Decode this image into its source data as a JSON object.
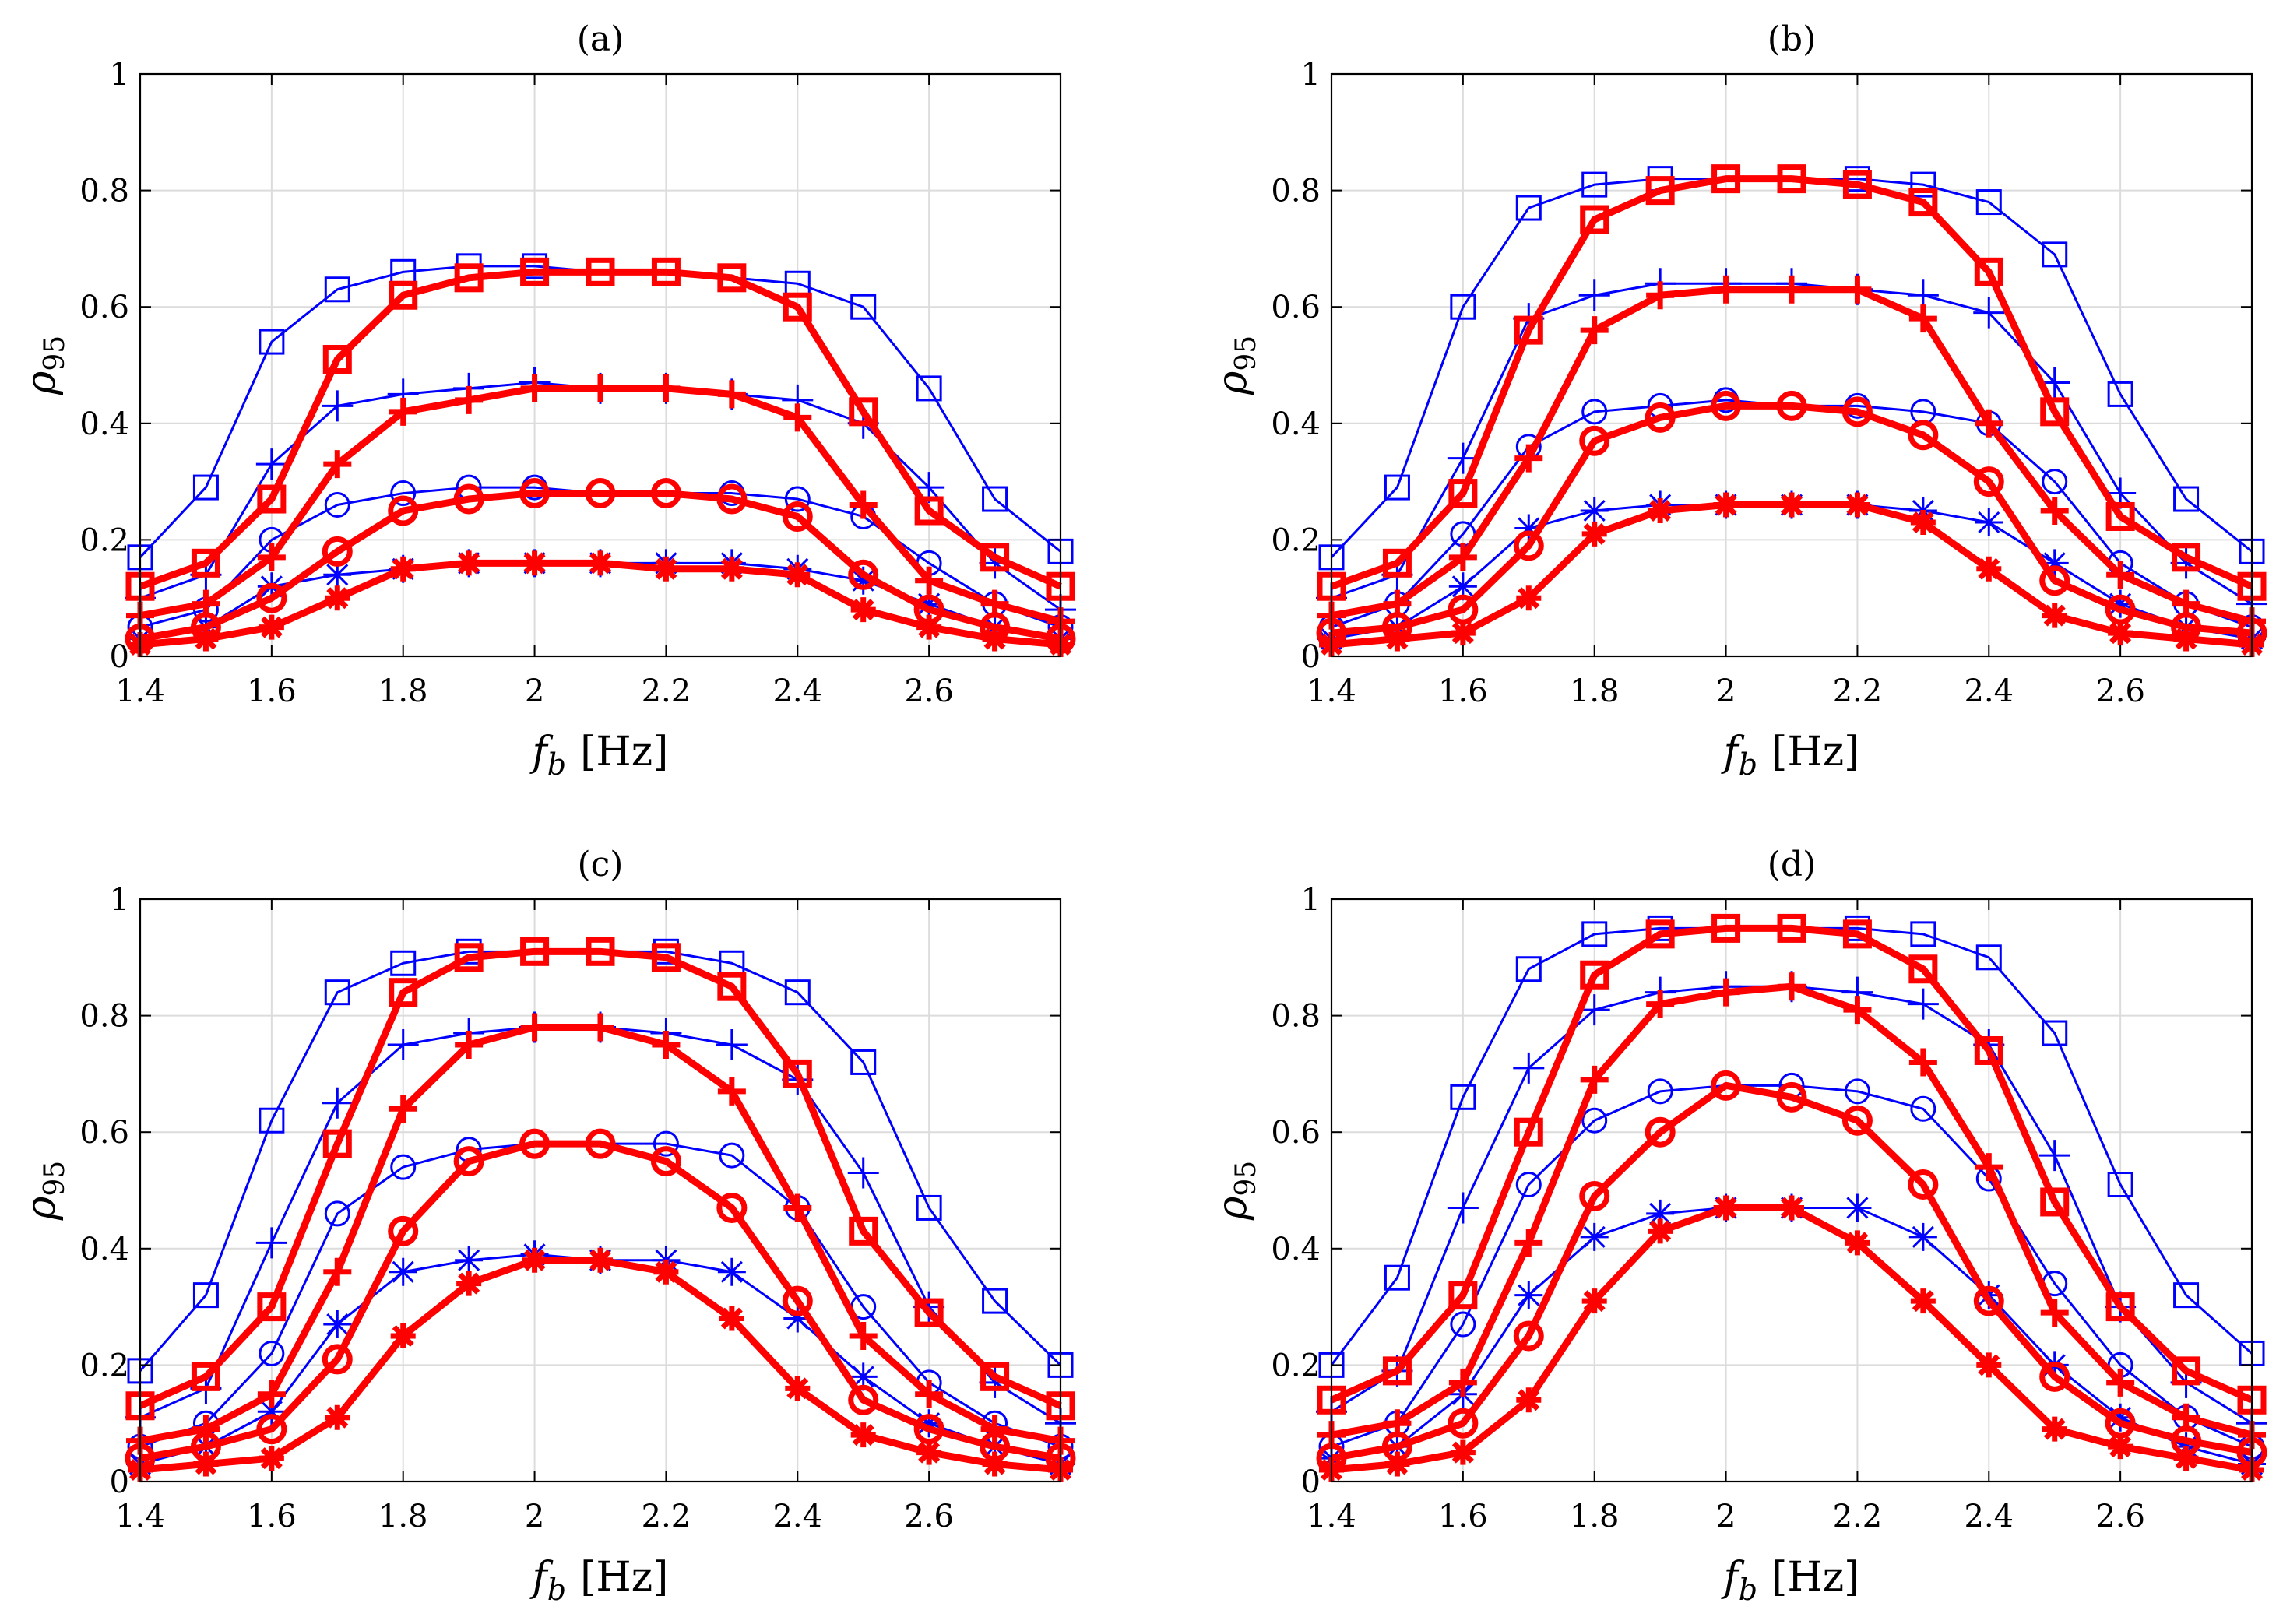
{
  "chart_data": [
    {
      "type": "line",
      "title": "(a)",
      "xlabel": {
        "symbol": "f",
        "sub": "b",
        "unit": "[Hz]"
      },
      "ylabel": {
        "symbol": "ρ",
        "sub": "95"
      },
      "xlim": [
        1.4,
        2.8
      ],
      "ylim": [
        0,
        1
      ],
      "xticks": [
        1.4,
        1.6,
        1.8,
        2,
        2.2,
        2.4,
        2.6
      ],
      "xtick_labels": [
        "1.4",
        "1.6",
        "1.8",
        "2",
        "2.2",
        "2.4",
        "2.6"
      ],
      "yticks": [
        0,
        0.2,
        0.4,
        0.6,
        0.8,
        1
      ],
      "ytick_labels": [
        "0",
        "0.2",
        "0.4",
        "0.6",
        "0.8",
        "1"
      ],
      "grid": true,
      "x": [
        1.4,
        1.5,
        1.6,
        1.7,
        1.8,
        1.9,
        2.0,
        2.1,
        2.2,
        2.3,
        2.4,
        2.5,
        2.6,
        2.7,
        2.8
      ],
      "series": [
        {
          "name": "blue-square",
          "color": "#0000ff",
          "marker": "square",
          "weight": "thin",
          "values": [
            0.17,
            0.29,
            0.54,
            0.63,
            0.66,
            0.67,
            0.67,
            0.66,
            0.66,
            0.65,
            0.64,
            0.6,
            0.46,
            0.27,
            0.18
          ]
        },
        {
          "name": "blue-plus",
          "color": "#0000ff",
          "marker": "plus",
          "weight": "thin",
          "values": [
            0.1,
            0.14,
            0.33,
            0.43,
            0.45,
            0.46,
            0.47,
            0.46,
            0.46,
            0.45,
            0.44,
            0.4,
            0.29,
            0.16,
            0.08
          ]
        },
        {
          "name": "blue-circle",
          "color": "#0000ff",
          "marker": "circle",
          "weight": "thin",
          "values": [
            0.05,
            0.08,
            0.2,
            0.26,
            0.28,
            0.29,
            0.29,
            0.28,
            0.28,
            0.28,
            0.27,
            0.24,
            0.16,
            0.09,
            0.05
          ]
        },
        {
          "name": "blue-star",
          "color": "#0000ff",
          "marker": "star",
          "weight": "thin",
          "values": [
            0.03,
            0.05,
            0.12,
            0.14,
            0.15,
            0.16,
            0.16,
            0.16,
            0.16,
            0.16,
            0.15,
            0.13,
            0.09,
            0.05,
            0.03
          ]
        },
        {
          "name": "red-square",
          "color": "#ff0000",
          "marker": "square",
          "weight": "thick",
          "values": [
            0.12,
            0.16,
            0.27,
            0.51,
            0.62,
            0.65,
            0.66,
            0.66,
            0.66,
            0.65,
            0.6,
            0.42,
            0.25,
            0.17,
            0.12
          ]
        },
        {
          "name": "red-plus",
          "color": "#ff0000",
          "marker": "plus",
          "weight": "thick",
          "values": [
            0.07,
            0.09,
            0.17,
            0.33,
            0.42,
            0.44,
            0.46,
            0.46,
            0.46,
            0.45,
            0.41,
            0.26,
            0.13,
            0.09,
            0.06
          ]
        },
        {
          "name": "red-circle",
          "color": "#ff0000",
          "marker": "circle",
          "weight": "thick",
          "values": [
            0.03,
            0.05,
            0.1,
            0.18,
            0.25,
            0.27,
            0.28,
            0.28,
            0.28,
            0.27,
            0.24,
            0.14,
            0.08,
            0.05,
            0.03
          ]
        },
        {
          "name": "red-star",
          "color": "#ff0000",
          "marker": "star",
          "weight": "thick",
          "values": [
            0.02,
            0.03,
            0.05,
            0.1,
            0.15,
            0.16,
            0.16,
            0.16,
            0.15,
            0.15,
            0.14,
            0.08,
            0.05,
            0.03,
            0.02
          ]
        }
      ]
    },
    {
      "type": "line",
      "title": "(b)",
      "xlabel": {
        "symbol": "f",
        "sub": "b",
        "unit": "[Hz]"
      },
      "ylabel": {
        "symbol": "ρ",
        "sub": "95"
      },
      "xlim": [
        1.4,
        2.8
      ],
      "ylim": [
        0,
        1
      ],
      "xticks": [
        1.4,
        1.6,
        1.8,
        2,
        2.2,
        2.4,
        2.6
      ],
      "xtick_labels": [
        "1.4",
        "1.6",
        "1.8",
        "2",
        "2.2",
        "2.4",
        "2.6"
      ],
      "yticks": [
        0,
        0.2,
        0.4,
        0.6,
        0.8,
        1
      ],
      "ytick_labels": [
        "0",
        "0.2",
        "0.4",
        "0.6",
        "0.8",
        "1"
      ],
      "grid": true,
      "x": [
        1.4,
        1.5,
        1.6,
        1.7,
        1.8,
        1.9,
        2.0,
        2.1,
        2.2,
        2.3,
        2.4,
        2.5,
        2.6,
        2.7,
        2.8
      ],
      "series": [
        {
          "name": "blue-square",
          "color": "#0000ff",
          "marker": "square",
          "weight": "thin",
          "values": [
            0.17,
            0.29,
            0.6,
            0.77,
            0.81,
            0.82,
            0.82,
            0.82,
            0.82,
            0.81,
            0.78,
            0.69,
            0.45,
            0.27,
            0.18
          ]
        },
        {
          "name": "blue-plus",
          "color": "#0000ff",
          "marker": "plus",
          "weight": "thin",
          "values": [
            0.1,
            0.14,
            0.34,
            0.58,
            0.62,
            0.64,
            0.64,
            0.64,
            0.63,
            0.62,
            0.59,
            0.47,
            0.28,
            0.16,
            0.09
          ]
        },
        {
          "name": "blue-circle",
          "color": "#0000ff",
          "marker": "circle",
          "weight": "thin",
          "values": [
            0.05,
            0.09,
            0.21,
            0.36,
            0.42,
            0.43,
            0.44,
            0.43,
            0.43,
            0.42,
            0.4,
            0.3,
            0.16,
            0.09,
            0.05
          ]
        },
        {
          "name": "blue-star",
          "color": "#0000ff",
          "marker": "star",
          "weight": "thin",
          "values": [
            0.03,
            0.05,
            0.12,
            0.22,
            0.25,
            0.26,
            0.26,
            0.26,
            0.26,
            0.25,
            0.23,
            0.16,
            0.09,
            0.05,
            0.03
          ]
        },
        {
          "name": "red-square",
          "color": "#ff0000",
          "marker": "square",
          "weight": "thick",
          "values": [
            0.12,
            0.16,
            0.28,
            0.56,
            0.75,
            0.8,
            0.82,
            0.82,
            0.81,
            0.78,
            0.66,
            0.42,
            0.24,
            0.17,
            0.12
          ]
        },
        {
          "name": "red-plus",
          "color": "#ff0000",
          "marker": "plus",
          "weight": "thick",
          "values": [
            0.07,
            0.09,
            0.17,
            0.34,
            0.56,
            0.62,
            0.63,
            0.63,
            0.63,
            0.58,
            0.4,
            0.25,
            0.14,
            0.09,
            0.06
          ]
        },
        {
          "name": "red-circle",
          "color": "#ff0000",
          "marker": "circle",
          "weight": "thick",
          "values": [
            0.04,
            0.05,
            0.08,
            0.19,
            0.37,
            0.41,
            0.43,
            0.43,
            0.42,
            0.38,
            0.3,
            0.13,
            0.08,
            0.05,
            0.04
          ]
        },
        {
          "name": "red-star",
          "color": "#ff0000",
          "marker": "star",
          "weight": "thick",
          "values": [
            0.02,
            0.03,
            0.04,
            0.1,
            0.21,
            0.25,
            0.26,
            0.26,
            0.26,
            0.23,
            0.15,
            0.07,
            0.04,
            0.03,
            0.02
          ]
        }
      ]
    },
    {
      "type": "line",
      "title": "(c)",
      "xlabel": {
        "symbol": "f",
        "sub": "b",
        "unit": "[Hz]"
      },
      "ylabel": {
        "symbol": "ρ",
        "sub": "95"
      },
      "xlim": [
        1.4,
        2.8
      ],
      "ylim": [
        0,
        1
      ],
      "xticks": [
        1.4,
        1.6,
        1.8,
        2,
        2.2,
        2.4,
        2.6
      ],
      "xtick_labels": [
        "1.4",
        "1.6",
        "1.8",
        "2",
        "2.2",
        "2.4",
        "2.6"
      ],
      "yticks": [
        0,
        0.2,
        0.4,
        0.6,
        0.8,
        1
      ],
      "ytick_labels": [
        "0",
        "0.2",
        "0.4",
        "0.6",
        "0.8",
        "1"
      ],
      "grid": true,
      "x": [
        1.4,
        1.5,
        1.6,
        1.7,
        1.8,
        1.9,
        2.0,
        2.1,
        2.2,
        2.3,
        2.4,
        2.5,
        2.6,
        2.7,
        2.8
      ],
      "series": [
        {
          "name": "blue-square",
          "color": "#0000ff",
          "marker": "square",
          "weight": "thin",
          "values": [
            0.19,
            0.32,
            0.62,
            0.84,
            0.89,
            0.91,
            0.91,
            0.91,
            0.91,
            0.89,
            0.84,
            0.72,
            0.47,
            0.31,
            0.2
          ]
        },
        {
          "name": "blue-plus",
          "color": "#0000ff",
          "marker": "plus",
          "weight": "thin",
          "values": [
            0.11,
            0.16,
            0.41,
            0.65,
            0.75,
            0.77,
            0.78,
            0.78,
            0.77,
            0.75,
            0.69,
            0.53,
            0.3,
            0.17,
            0.1
          ]
        },
        {
          "name": "blue-circle",
          "color": "#0000ff",
          "marker": "circle",
          "weight": "thin",
          "values": [
            0.06,
            0.1,
            0.22,
            0.46,
            0.54,
            0.57,
            0.58,
            0.58,
            0.58,
            0.56,
            0.47,
            0.3,
            0.17,
            0.1,
            0.06
          ]
        },
        {
          "name": "blue-star",
          "color": "#0000ff",
          "marker": "star",
          "weight": "thin",
          "values": [
            0.03,
            0.06,
            0.12,
            0.27,
            0.36,
            0.38,
            0.39,
            0.38,
            0.38,
            0.36,
            0.28,
            0.18,
            0.1,
            0.06,
            0.03
          ]
        },
        {
          "name": "red-square",
          "color": "#ff0000",
          "marker": "square",
          "weight": "thick",
          "values": [
            0.13,
            0.18,
            0.3,
            0.58,
            0.84,
            0.9,
            0.91,
            0.91,
            0.9,
            0.85,
            0.7,
            0.43,
            0.29,
            0.18,
            0.13
          ]
        },
        {
          "name": "red-plus",
          "color": "#ff0000",
          "marker": "plus",
          "weight": "thick",
          "values": [
            0.07,
            0.09,
            0.15,
            0.36,
            0.64,
            0.75,
            0.78,
            0.78,
            0.75,
            0.67,
            0.47,
            0.25,
            0.15,
            0.09,
            0.07
          ]
        },
        {
          "name": "red-circle",
          "color": "#ff0000",
          "marker": "circle",
          "weight": "thick",
          "values": [
            0.04,
            0.06,
            0.09,
            0.21,
            0.43,
            0.55,
            0.58,
            0.58,
            0.55,
            0.47,
            0.31,
            0.14,
            0.09,
            0.06,
            0.04
          ]
        },
        {
          "name": "red-star",
          "color": "#ff0000",
          "marker": "star",
          "weight": "thick",
          "values": [
            0.02,
            0.03,
            0.04,
            0.11,
            0.25,
            0.34,
            0.38,
            0.38,
            0.36,
            0.28,
            0.16,
            0.08,
            0.05,
            0.03,
            0.02
          ]
        }
      ]
    },
    {
      "type": "line",
      "title": "(d)",
      "xlabel": {
        "symbol": "f",
        "sub": "b",
        "unit": "[Hz]"
      },
      "ylabel": {
        "symbol": "ρ",
        "sub": "95"
      },
      "xlim": [
        1.4,
        2.8
      ],
      "ylim": [
        0,
        1
      ],
      "xticks": [
        1.4,
        1.6,
        1.8,
        2,
        2.2,
        2.4,
        2.6
      ],
      "xtick_labels": [
        "1.4",
        "1.6",
        "1.8",
        "2",
        "2.2",
        "2.4",
        "2.6"
      ],
      "yticks": [
        0,
        0.2,
        0.4,
        0.6,
        0.8,
        1
      ],
      "ytick_labels": [
        "0",
        "0.2",
        "0.4",
        "0.6",
        "0.8",
        "1"
      ],
      "grid": true,
      "x": [
        1.4,
        1.5,
        1.6,
        1.7,
        1.8,
        1.9,
        2.0,
        2.1,
        2.2,
        2.3,
        2.4,
        2.5,
        2.6,
        2.7,
        2.8
      ],
      "series": [
        {
          "name": "blue-square",
          "color": "#0000ff",
          "marker": "square",
          "weight": "thin",
          "values": [
            0.2,
            0.35,
            0.66,
            0.88,
            0.94,
            0.95,
            0.95,
            0.95,
            0.95,
            0.94,
            0.9,
            0.77,
            0.51,
            0.32,
            0.22
          ]
        },
        {
          "name": "blue-plus",
          "color": "#0000ff",
          "marker": "plus",
          "weight": "thin",
          "values": [
            0.12,
            0.19,
            0.47,
            0.71,
            0.81,
            0.84,
            0.85,
            0.85,
            0.84,
            0.82,
            0.75,
            0.56,
            0.3,
            0.17,
            0.1
          ]
        },
        {
          "name": "blue-circle",
          "color": "#0000ff",
          "marker": "circle",
          "weight": "thin",
          "values": [
            0.06,
            0.1,
            0.27,
            0.51,
            0.62,
            0.67,
            0.68,
            0.68,
            0.67,
            0.64,
            0.52,
            0.34,
            0.2,
            0.11,
            0.06
          ]
        },
        {
          "name": "blue-star",
          "color": "#0000ff",
          "marker": "star",
          "weight": "thin",
          "values": [
            0.04,
            0.06,
            0.15,
            0.32,
            0.42,
            0.46,
            0.47,
            0.47,
            0.47,
            0.42,
            0.32,
            0.2,
            0.11,
            0.06,
            0.03
          ]
        },
        {
          "name": "red-square",
          "color": "#ff0000",
          "marker": "square",
          "weight": "thick",
          "values": [
            0.14,
            0.19,
            0.32,
            0.6,
            0.87,
            0.94,
            0.95,
            0.95,
            0.94,
            0.88,
            0.74,
            0.48,
            0.3,
            0.19,
            0.14
          ]
        },
        {
          "name": "red-plus",
          "color": "#ff0000",
          "marker": "plus",
          "weight": "thick",
          "values": [
            0.08,
            0.1,
            0.17,
            0.41,
            0.69,
            0.82,
            0.84,
            0.85,
            0.81,
            0.72,
            0.54,
            0.29,
            0.17,
            0.11,
            0.08
          ]
        },
        {
          "name": "red-circle",
          "color": "#ff0000",
          "marker": "circle",
          "weight": "thick",
          "values": [
            0.04,
            0.06,
            0.1,
            0.25,
            0.49,
            0.6,
            0.68,
            0.66,
            0.62,
            0.51,
            0.31,
            0.18,
            0.1,
            0.07,
            0.05
          ]
        },
        {
          "name": "red-star",
          "color": "#ff0000",
          "marker": "star",
          "weight": "thick",
          "values": [
            0.02,
            0.03,
            0.05,
            0.14,
            0.31,
            0.43,
            0.47,
            0.47,
            0.41,
            0.31,
            0.2,
            0.09,
            0.06,
            0.04,
            0.02
          ]
        }
      ]
    }
  ]
}
